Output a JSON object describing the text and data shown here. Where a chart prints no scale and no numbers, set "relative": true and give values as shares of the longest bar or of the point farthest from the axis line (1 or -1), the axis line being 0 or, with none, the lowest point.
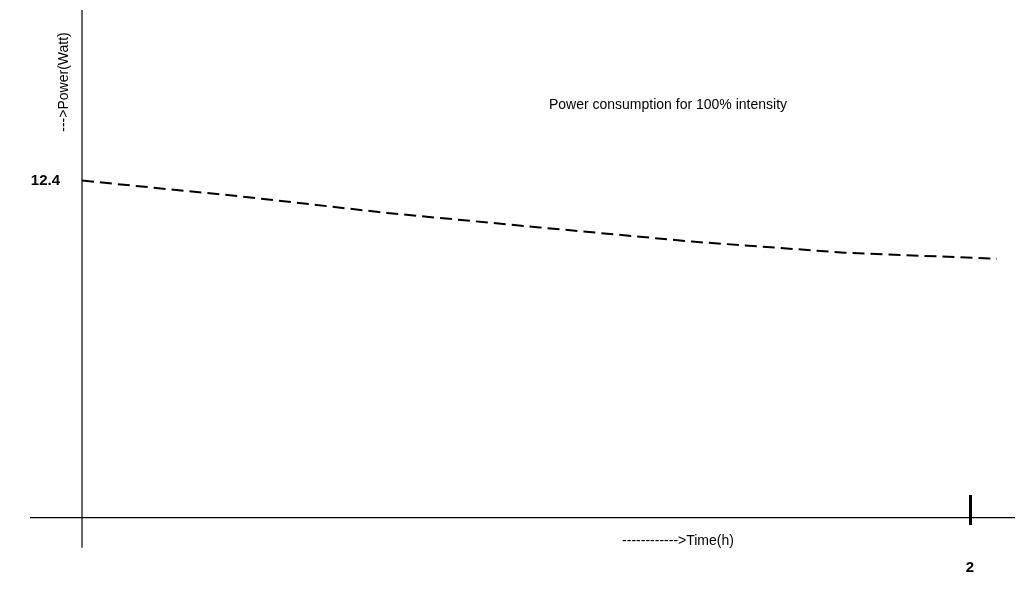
{
  "chart_data": {
    "type": "line",
    "title": "Power consumption for 100% intensity",
    "xlabel": "------------>Time(h)",
    "ylabel": "--->Power(Watt)",
    "relative": true,
    "categories": [
      null,
      null,
      null,
      null,
      null,
      null,
      null
    ],
    "values": [
      1,
      0.955,
      0.904,
      0.861,
      0.819,
      0.786,
      0.768
    ],
    "color": "#000000",
    "line_style": "dashed",
    "marker": "none",
    "annotations": [
      "12.4",
      "2"
    ]
  }
}
